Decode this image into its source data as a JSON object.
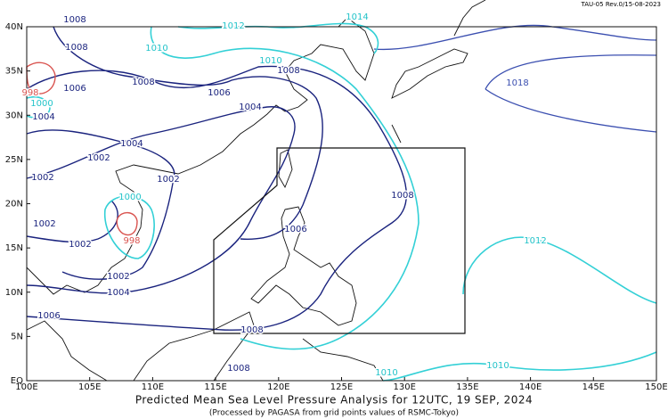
{
  "header": {
    "code": "TAU-05 Rev.0/15-08-2023"
  },
  "map": {
    "lat_labels": [
      "40N",
      "35N",
      "30N",
      "25N",
      "20N",
      "15N",
      "10N",
      "5N",
      "EQ"
    ],
    "lon_labels": [
      "100E",
      "105E",
      "110E",
      "115E",
      "120E",
      "125E",
      "130E",
      "135E",
      "140E",
      "145E",
      "150E"
    ],
    "isobar_labels": [
      "1008",
      "1008",
      "1010",
      "1012",
      "1014",
      "1010",
      "1008",
      "1008",
      "1006",
      "1006",
      "1004",
      "1018",
      "1000",
      "1004",
      "998",
      "1004",
      "1002",
      "1002",
      "1002",
      "1000",
      "1008",
      "1002",
      "1006",
      "998",
      "1002",
      "1012",
      "1002",
      "1004",
      "1006",
      "1008",
      "1008",
      "1010",
      "1010"
    ]
  },
  "footer": {
    "title": "Predicted Mean Sea Level Pressure Analysis for 12UTC, 19 SEP, 2024",
    "subtitle": "(Processed by PAGASA from grid points values of RSMC-Tokyo)"
  }
}
